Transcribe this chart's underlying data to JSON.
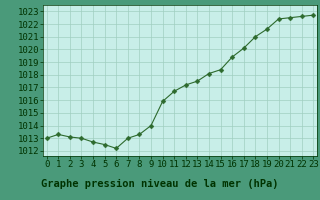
{
  "x": [
    0,
    1,
    2,
    3,
    4,
    5,
    6,
    7,
    8,
    9,
    10,
    11,
    12,
    13,
    14,
    15,
    16,
    17,
    18,
    19,
    20,
    21,
    22,
    23
  ],
  "y": [
    1013.0,
    1013.3,
    1013.1,
    1013.0,
    1012.7,
    1012.5,
    1012.2,
    1013.0,
    1013.3,
    1014.0,
    1015.9,
    1016.7,
    1017.2,
    1017.5,
    1018.1,
    1018.4,
    1019.4,
    1020.1,
    1021.0,
    1021.6,
    1022.4,
    1022.5,
    1022.6,
    1022.7
  ],
  "line_color": "#2d6a2d",
  "marker": "D",
  "marker_size": 2.5,
  "plot_bg_color": "#c8eee8",
  "bottom_bar_color": "#4a9a7a",
  "grid_color": "#a0cfc0",
  "xlabel": "Graphe pression niveau de la mer (hPa)",
  "xlabel_color": "#003300",
  "xlabel_fontsize": 7.5,
  "tick_color": "#003300",
  "tick_fontsize": 6.5,
  "ytick_min": 1012,
  "ytick_max": 1023,
  "ytick_step": 1,
  "xtick_labels": [
    "0",
    "1",
    "2",
    "3",
    "4",
    "5",
    "6",
    "7",
    "8",
    "9",
    "10",
    "11",
    "12",
    "13",
    "14",
    "15",
    "16",
    "17",
    "18",
    "19",
    "20",
    "21",
    "22",
    "23"
  ],
  "ylim": [
    1011.6,
    1023.5
  ],
  "xlim": [
    -0.3,
    23.3
  ],
  "fig_bg_color": "#4a9a7a"
}
